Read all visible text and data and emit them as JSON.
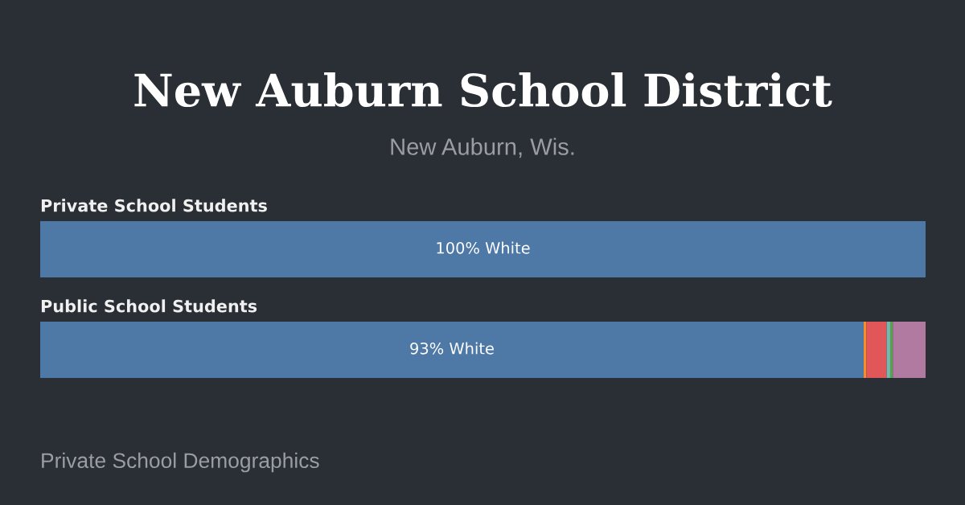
{
  "chart_data": {
    "type": "bar",
    "orientation": "horizontal",
    "stacked": true,
    "title": "New Auburn School District",
    "subtitle": "New Auburn, Wis.",
    "categories": [
      "Private School Students",
      "Public School Students"
    ],
    "series": [
      {
        "color": "#4e79a7",
        "values": [
          100,
          93
        ],
        "value_labels": [
          "100% White",
          "93% White"
        ]
      },
      {
        "color": "#f28e2b",
        "values": [
          0,
          0.3
        ]
      },
      {
        "color": "#e15759",
        "values": [
          0,
          2.3
        ]
      },
      {
        "color": "#76b7b2",
        "values": [
          0,
          0.4
        ]
      },
      {
        "color": "#59a14f",
        "values": [
          0,
          0.3
        ]
      },
      {
        "color": "#b07aa1",
        "values": [
          0,
          3.7
        ]
      }
    ],
    "xlim": [
      0,
      100
    ],
    "annotations": [
      "Private School Demographics"
    ]
  }
}
